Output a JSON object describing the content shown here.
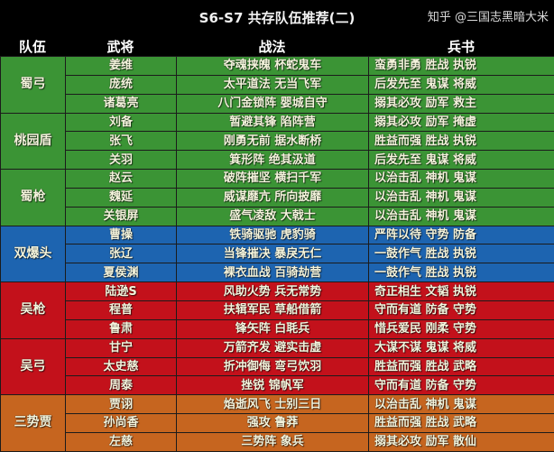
{
  "title": "S6-S7 共存队伍推荐(二)",
  "headers": [
    "队伍",
    "武将",
    "战法",
    "兵书"
  ],
  "colors": {
    "green": "#3b9435",
    "blue": "#1d64b0",
    "red": "#c3111b",
    "orange": "#c6651f"
  },
  "teams": [
    {
      "name": "蜀弓",
      "color": "green",
      "rows": [
        {
          "general": "姜维",
          "tactics": "夺魂挟魄 杯蛇鬼车",
          "books": "蛮勇非勇 胜战 执锐"
        },
        {
          "general": "庞统",
          "tactics": "太平道法 无当飞军",
          "books": "后发先至 鬼谋 将威"
        },
        {
          "general": "诸葛亮",
          "tactics": "八门金锁阵 婴城自守",
          "books": "搦其必攻 励军 救主"
        }
      ]
    },
    {
      "name": "桃园盾",
      "color": "green",
      "rows": [
        {
          "general": "刘备",
          "tactics": "暂避其锋 陷阵营",
          "books": "搦其必攻 励军 掩虚"
        },
        {
          "general": "张飞",
          "tactics": "刚勇无前 据水断桥",
          "books": "胜益而强 胜战 执锐"
        },
        {
          "general": "关羽",
          "tactics": "箕形阵 绝其汲道",
          "books": "后发先至 鬼谋 将威"
        }
      ]
    },
    {
      "name": "蜀枪",
      "color": "green",
      "rows": [
        {
          "general": "赵云",
          "tactics": "破阵摧坚 横扫千军",
          "books": "以治击乱 神机 鬼谋"
        },
        {
          "general": "魏延",
          "tactics": "威谋靡亢 所向披靡",
          "books": "以治击乱 神机 鬼谋"
        },
        {
          "general": "关银屏",
          "tactics": "盛气凌敌 大戟士",
          "books": "以治击乱 神机 鬼谋"
        }
      ]
    },
    {
      "name": "双爆头",
      "color": "blue",
      "rows": [
        {
          "general": "曹操",
          "tactics": "铁骑驱驰 虎豹骑",
          "books": "严阵以待 守势 防备"
        },
        {
          "general": "张辽",
          "tactics": "当锋摧决 暴戾无仁",
          "books": "一鼓作气 胜战 执锐"
        },
        {
          "general": "夏侯渊",
          "tactics": "裸衣血战 百骑劫营",
          "books": "一鼓作气 胜战 执锐"
        }
      ]
    },
    {
      "name": "吴枪",
      "color": "red",
      "rows": [
        {
          "general": "陆逊S",
          "tactics": "风助火势 兵无常势",
          "books": "奇正相生 文韬 执锐"
        },
        {
          "general": "程普",
          "tactics": "扶辑军民 草船借箭",
          "books": "守而有道 防备 守势"
        },
        {
          "general": "鲁肃",
          "tactics": "锋矢阵 白毦兵",
          "books": "惜兵爱民 刚柔 守势"
        }
      ]
    },
    {
      "name": "吴弓",
      "color": "red",
      "rows": [
        {
          "general": "甘宁",
          "tactics": "万箭齐发 避实击虚",
          "books": "大谋不谋 鬼谋 将威"
        },
        {
          "general": "太史慈",
          "tactics": "折冲御侮 弯弓饮羽",
          "books": "胜益而强 胜战 武略"
        },
        {
          "general": "周泰",
          "tactics": "挫锐 锦帆军",
          "books": "守而有道 防备 守势"
        }
      ]
    },
    {
      "name": "三势贾",
      "color": "orange",
      "rows": [
        {
          "general": "贾诩",
          "tactics": "焰逝风飞 士别三日",
          "books": "以治击乱 神机 鬼谋"
        },
        {
          "general": "孙尚香",
          "tactics": "强攻 鲁莽",
          "books": "胜益而强 胜战 武略"
        },
        {
          "general": "左慈",
          "tactics": "三势阵 象兵",
          "books": "搦其必攻 励军 散仙"
        }
      ]
    }
  ],
  "watermark": "知乎 @三国志黑暗大米"
}
